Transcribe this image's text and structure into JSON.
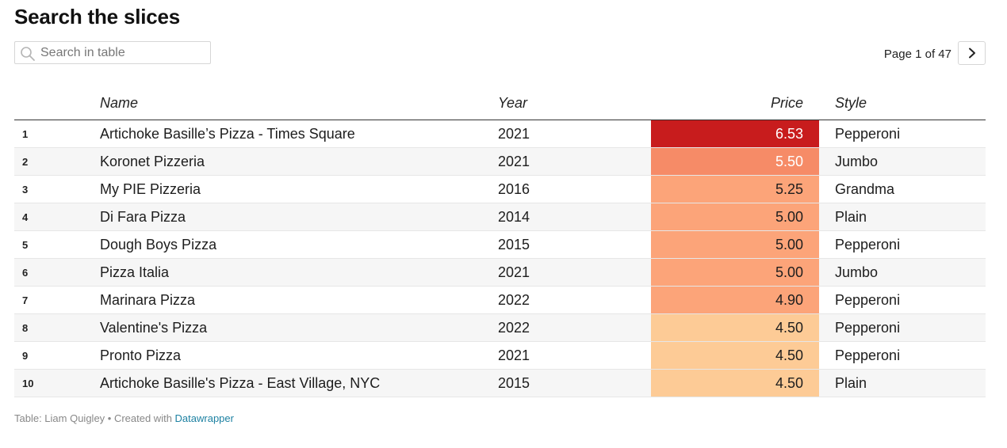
{
  "title": "Search the slices",
  "search": {
    "placeholder": "Search in table",
    "value": ""
  },
  "pagination": {
    "label": "Page 1 of 47",
    "next_icon": "chevron-right-icon"
  },
  "colors": {
    "high": "#c81c1d",
    "mid_high": "#f68b67",
    "mid": "#fca479",
    "low": "#fdcb96"
  },
  "chart_data": {
    "type": "table",
    "columns": [
      "",
      "Name",
      "Year",
      "Price",
      "Style"
    ],
    "rows": [
      {
        "rank": "1",
        "name": "Artichoke Basille’s Pizza - Times Square",
        "year": "2021",
        "price": "6.53",
        "style": "Pepperoni"
      },
      {
        "rank": "2",
        "name": "Koronet Pizzeria",
        "year": "2021",
        "price": "5.50",
        "style": "Jumbo"
      },
      {
        "rank": "3",
        "name": "My PIE Pizzeria",
        "year": "2016",
        "price": "5.25",
        "style": "Grandma"
      },
      {
        "rank": "4",
        "name": "Di Fara Pizza",
        "year": "2014",
        "price": "5.00",
        "style": "Plain"
      },
      {
        "rank": "5",
        "name": "Dough Boys Pizza",
        "year": "2015",
        "price": "5.00",
        "style": "Pepperoni"
      },
      {
        "rank": "6",
        "name": "Pizza Italia",
        "year": "2021",
        "price": "5.00",
        "style": "Jumbo"
      },
      {
        "rank": "7",
        "name": "Marinara Pizza",
        "year": "2022",
        "price": "4.90",
        "style": "Pepperoni"
      },
      {
        "rank": "8",
        "name": "Valentine's Pizza",
        "year": "2022",
        "price": "4.50",
        "style": "Pepperoni"
      },
      {
        "rank": "9",
        "name": "Pronto Pizza",
        "year": "2021",
        "price": "4.50",
        "style": "Pepperoni"
      },
      {
        "rank": "10",
        "name": "Artichoke Basille's Pizza - East Village, NYC",
        "year": "2015",
        "price": "4.50",
        "style": "Plain"
      }
    ]
  },
  "footer": {
    "prefix": "Table: Liam Quigley • Created with ",
    "link": "Datawrapper"
  }
}
